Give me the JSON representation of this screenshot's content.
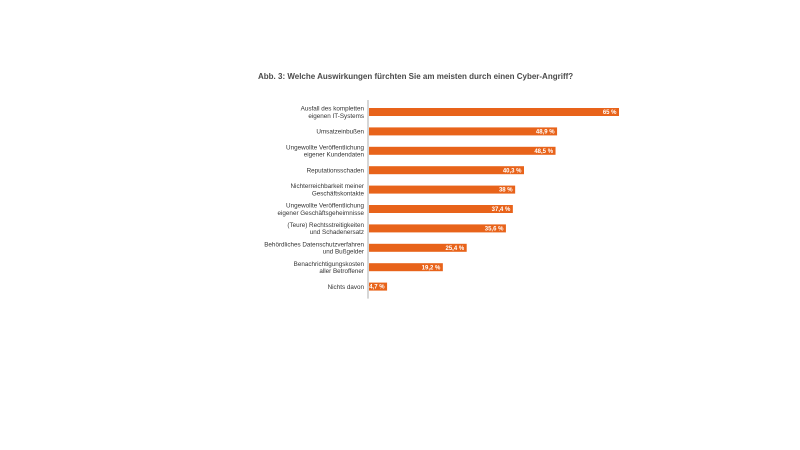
{
  "chart_data": {
    "type": "bar",
    "orientation": "horizontal",
    "title": "Abb. 3: Welche Auswirkungen fürchten Sie am meisten durch einen Cyber-Angriff?",
    "categories": [
      [
        "Ausfall des kompletten",
        "eigenen IT-Systems"
      ],
      [
        "Umsatzeinbußen"
      ],
      [
        "Ungewollte Veröffentlichung",
        "eigener Kundendaten"
      ],
      [
        "Reputationsschaden"
      ],
      [
        "Nichterreichbarkeit meiner",
        "Geschäftskontakte"
      ],
      [
        "Ungewollte Veröffentlichung",
        "eigener Geschäftsgeheimnisse"
      ],
      [
        "(Teure) Rechtsstreitigkeiten",
        "und Schadenersatz"
      ],
      [
        "Behördliches Datenschutzverfahren",
        "und Bußgelder"
      ],
      [
        "Benachrichtigungskosten",
        "aller Betroffener"
      ],
      [
        "Nichts davon"
      ]
    ],
    "values": [
      65,
      48.9,
      48.5,
      40.3,
      38,
      37.4,
      35.6,
      25.4,
      19.2,
      4.7
    ],
    "value_labels": [
      "65 %",
      "48,9 %",
      "48,5 %",
      "40,3 %",
      "38 %",
      "37,4 %",
      "35,6 %",
      "25,4 %",
      "19,2 %",
      "4,7 %"
    ],
    "xlim": [
      0,
      65
    ],
    "bar_color": "#e8631a",
    "axis_color": "#999999",
    "grid": false,
    "legend": "none"
  }
}
